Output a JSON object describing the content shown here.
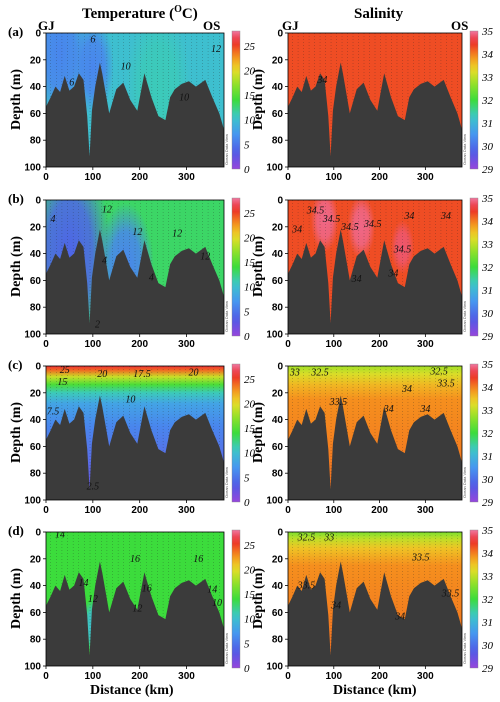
{
  "figure": {
    "left_title": "Temperature (",
    "left_title_sup": "O",
    "left_title_end": "C)",
    "right_title": "Salinity",
    "station_left": "GJ",
    "station_right": "OS",
    "depth_label": "Depth (m)",
    "distance_label": "Distance (km)",
    "watermark": "Ocean Data View",
    "panel_labels": [
      "(a)",
      "(b)",
      "(c)",
      "(d)"
    ]
  },
  "chart_data": [
    {
      "type": "heatmap",
      "panel": "(a)",
      "variable": "Temperature",
      "x_ticks": [
        0,
        100,
        200,
        300
      ],
      "y_ticks": [
        0,
        20,
        40,
        60,
        80,
        100
      ],
      "xlim": [
        0,
        380
      ],
      "ylim": [
        0,
        100
      ],
      "colorbar": {
        "ticks": [
          0,
          5,
          10,
          15,
          20,
          25
        ],
        "range": [
          0,
          28
        ]
      },
      "background_value": 10,
      "blobs": [
        {
          "x": 30,
          "d": 15,
          "r": 60,
          "v": 6
        },
        {
          "x": 100,
          "d": 25,
          "r": 45,
          "v": 6
        },
        {
          "x": 240,
          "d": 40,
          "r": 70,
          "v": 11
        }
      ],
      "contour_labels": [
        {
          "x": 100,
          "d": 5,
          "t": "6"
        },
        {
          "x": 55,
          "d": 37,
          "t": "6"
        },
        {
          "x": 170,
          "d": 25,
          "t": "10"
        },
        {
          "x": 295,
          "d": 48,
          "t": "10"
        },
        {
          "x": 363,
          "d": 12,
          "t": "12"
        }
      ]
    },
    {
      "type": "heatmap",
      "panel": "(a)",
      "variable": "Salinity",
      "x_ticks": [
        0,
        100,
        200,
        300
      ],
      "y_ticks": [
        0,
        20,
        40,
        60,
        80,
        100
      ],
      "xlim": [
        0,
        380
      ],
      "ylim": [
        0,
        100
      ],
      "colorbar": {
        "ticks": [
          29,
          30,
          31,
          32,
          33,
          34,
          35
        ],
        "range": [
          29,
          35
        ]
      },
      "background_value": 34.3,
      "blobs": [],
      "contour_labels": [
        {
          "x": 75,
          "d": 35,
          "t": "34"
        }
      ]
    },
    {
      "type": "heatmap",
      "panel": "(b)",
      "variable": "Temperature",
      "x_ticks": [
        0,
        100,
        200,
        300
      ],
      "y_ticks": [
        0,
        20,
        40,
        60,
        80,
        100
      ],
      "xlim": [
        0,
        380
      ],
      "ylim": [
        0,
        100
      ],
      "colorbar": {
        "ticks": [
          0,
          5,
          10,
          15,
          20,
          25
        ],
        "range": [
          0,
          28
        ]
      },
      "background_value": 13,
      "blobs": [
        {
          "x": 50,
          "d": 40,
          "r": 90,
          "v": 4
        },
        {
          "x": 170,
          "d": 50,
          "r": 60,
          "v": 6
        }
      ],
      "contour_labels": [
        {
          "x": 15,
          "d": 14,
          "t": "4"
        },
        {
          "x": 130,
          "d": 7,
          "t": "12"
        },
        {
          "x": 195,
          "d": 24,
          "t": "12"
        },
        {
          "x": 280,
          "d": 25,
          "t": "12"
        },
        {
          "x": 340,
          "d": 42,
          "t": "12"
        },
        {
          "x": 125,
          "d": 45,
          "t": "4"
        },
        {
          "x": 225,
          "d": 58,
          "t": "4"
        },
        {
          "x": 110,
          "d": 93,
          "t": "2"
        }
      ]
    },
    {
      "type": "heatmap",
      "panel": "(b)",
      "variable": "Salinity",
      "x_ticks": [
        0,
        100,
        200,
        300
      ],
      "y_ticks": [
        0,
        20,
        40,
        60,
        80,
        100
      ],
      "xlim": [
        0,
        380
      ],
      "ylim": [
        0,
        100
      ],
      "colorbar": {
        "ticks": [
          29,
          30,
          31,
          32,
          33,
          34,
          35
        ],
        "range": [
          29,
          35
        ]
      },
      "background_value": 34.3,
      "blobs": [
        {
          "x": 80,
          "d": 15,
          "r": 30,
          "v": 34.9
        },
        {
          "x": 160,
          "d": 20,
          "r": 30,
          "v": 34.9
        },
        {
          "x": 250,
          "d": 35,
          "r": 25,
          "v": 34.8
        }
      ],
      "contour_labels": [
        {
          "x": 20,
          "d": 22,
          "t": "34"
        },
        {
          "x": 60,
          "d": 8,
          "t": "34.5"
        },
        {
          "x": 95,
          "d": 14,
          "t": "34.5"
        },
        {
          "x": 135,
          "d": 20,
          "t": "34.5"
        },
        {
          "x": 185,
          "d": 18,
          "t": "34.5"
        },
        {
          "x": 265,
          "d": 12,
          "t": "34"
        },
        {
          "x": 345,
          "d": 12,
          "t": "34"
        },
        {
          "x": 250,
          "d": 37,
          "t": "34.5"
        },
        {
          "x": 150,
          "d": 59,
          "t": "34"
        },
        {
          "x": 230,
          "d": 55,
          "t": "34"
        }
      ]
    },
    {
      "type": "heatmap",
      "panel": "(c)",
      "variable": "Temperature",
      "x_ticks": [
        0,
        100,
        200,
        300
      ],
      "y_ticks": [
        0,
        20,
        40,
        60,
        80,
        100
      ],
      "xlim": [
        0,
        380
      ],
      "ylim": [
        0,
        100
      ],
      "colorbar": {
        "ticks": [
          0,
          5,
          10,
          15,
          20,
          25
        ],
        "range": [
          0,
          28
        ]
      },
      "background_value": 8,
      "layers": [
        {
          "d": 0,
          "v": 26
        },
        {
          "d": 3,
          "v": 24
        },
        {
          "d": 8,
          "v": 19
        },
        {
          "d": 14,
          "v": 14.5
        },
        {
          "d": 20,
          "v": 11
        },
        {
          "d": 28,
          "v": 8
        },
        {
          "d": 45,
          "v": 6
        },
        {
          "d": 100,
          "v": 2
        }
      ],
      "contour_labels": [
        {
          "x": 40,
          "d": 3,
          "t": "25"
        },
        {
          "x": 35,
          "d": 12,
          "t": "15"
        },
        {
          "x": 120,
          "d": 6,
          "t": "20"
        },
        {
          "x": 205,
          "d": 6,
          "t": "17.5"
        },
        {
          "x": 315,
          "d": 5,
          "t": "20"
        },
        {
          "x": 15,
          "d": 34,
          "t": "7.5"
        },
        {
          "x": 180,
          "d": 25,
          "t": "10"
        },
        {
          "x": 100,
          "d": 90,
          "t": "2.5"
        }
      ]
    },
    {
      "type": "heatmap",
      "panel": "(c)",
      "variable": "Salinity",
      "x_ticks": [
        0,
        100,
        200,
        300
      ],
      "y_ticks": [
        0,
        20,
        40,
        60,
        80,
        100
      ],
      "xlim": [
        0,
        380
      ],
      "ylim": [
        0,
        100
      ],
      "colorbar": {
        "ticks": [
          29,
          30,
          31,
          32,
          33,
          34,
          35
        ],
        "range": [
          29,
          35
        ]
      },
      "background_value": 33.7,
      "layers": [
        {
          "d": 0,
          "v": 32.8
        },
        {
          "d": 6,
          "v": 33.2
        },
        {
          "d": 14,
          "v": 33.6
        },
        {
          "d": 25,
          "v": 33.9
        },
        {
          "d": 100,
          "v": 34.1
        }
      ],
      "contour_labels": [
        {
          "x": 15,
          "d": 5,
          "t": "33"
        },
        {
          "x": 70,
          "d": 5,
          "t": "32.5"
        },
        {
          "x": 330,
          "d": 4,
          "t": "32.5"
        },
        {
          "x": 345,
          "d": 13,
          "t": "33.5"
        },
        {
          "x": 110,
          "d": 27,
          "t": "33.5"
        },
        {
          "x": 260,
          "d": 17,
          "t": "34"
        },
        {
          "x": 220,
          "d": 32,
          "t": "34"
        },
        {
          "x": 300,
          "d": 32,
          "t": "34"
        }
      ]
    },
    {
      "type": "heatmap",
      "panel": "(d)",
      "variable": "Temperature",
      "x_ticks": [
        0,
        100,
        200,
        300
      ],
      "y_ticks": [
        0,
        20,
        40,
        60,
        80,
        100
      ],
      "xlim": [
        0,
        380
      ],
      "ylim": [
        0,
        100
      ],
      "colorbar": {
        "ticks": [
          0,
          5,
          10,
          15,
          20,
          25
        ],
        "range": [
          0,
          28
        ]
      },
      "background_value": 14,
      "blobs": [
        {
          "x": 100,
          "d": 70,
          "r": 25,
          "v": 10
        }
      ],
      "contour_labels": [
        {
          "x": 30,
          "d": 2,
          "t": "14"
        },
        {
          "x": 80,
          "d": 38,
          "t": "14"
        },
        {
          "x": 100,
          "d": 50,
          "t": "12"
        },
        {
          "x": 190,
          "d": 20,
          "t": "16"
        },
        {
          "x": 215,
          "d": 42,
          "t": "16"
        },
        {
          "x": 325,
          "d": 20,
          "t": "16"
        },
        {
          "x": 355,
          "d": 43,
          "t": "14"
        },
        {
          "x": 195,
          "d": 57,
          "t": "12"
        },
        {
          "x": 365,
          "d": 53,
          "t": "10"
        }
      ]
    },
    {
      "type": "heatmap",
      "panel": "(d)",
      "variable": "Salinity",
      "x_ticks": [
        0,
        100,
        200,
        300
      ],
      "y_ticks": [
        0,
        20,
        40,
        60,
        80,
        100
      ],
      "xlim": [
        0,
        380
      ],
      "ylim": [
        0,
        100
      ],
      "colorbar": {
        "ticks": [
          29,
          30,
          31,
          32,
          33,
          34,
          35
        ],
        "range": [
          29,
          35
        ]
      },
      "background_value": 33.8,
      "layers": [
        {
          "d": 0,
          "v": 32.5
        },
        {
          "d": 5,
          "v": 33.0
        },
        {
          "d": 12,
          "v": 33.5
        },
        {
          "d": 25,
          "v": 33.9
        },
        {
          "d": 100,
          "v": 34.1
        }
      ],
      "contour_labels": [
        {
          "x": 40,
          "d": 4,
          "t": "32.5"
        },
        {
          "x": 90,
          "d": 4,
          "t": "33"
        },
        {
          "x": 40,
          "d": 40,
          "t": "33.5"
        },
        {
          "x": 105,
          "d": 55,
          "t": "34"
        },
        {
          "x": 290,
          "d": 19,
          "t": "33.5"
        },
        {
          "x": 355,
          "d": 46,
          "t": "33.5"
        },
        {
          "x": 245,
          "d": 63,
          "t": "34"
        }
      ]
    }
  ],
  "bathymetry_depths": [
    [
      0,
      55
    ],
    [
      10,
      48
    ],
    [
      20,
      40
    ],
    [
      30,
      44
    ],
    [
      40,
      32
    ],
    [
      50,
      43
    ],
    [
      60,
      40
    ],
    [
      70,
      30
    ],
    [
      80,
      35
    ],
    [
      88,
      62
    ],
    [
      93,
      92
    ],
    [
      98,
      58
    ],
    [
      105,
      40
    ],
    [
      115,
      22
    ],
    [
      120,
      30
    ],
    [
      135,
      60
    ],
    [
      150,
      42
    ],
    [
      165,
      37
    ],
    [
      180,
      50
    ],
    [
      195,
      58
    ],
    [
      210,
      30
    ],
    [
      225,
      48
    ],
    [
      240,
      62
    ],
    [
      255,
      65
    ],
    [
      265,
      48
    ],
    [
      275,
      42
    ],
    [
      290,
      38
    ],
    [
      305,
      36
    ],
    [
      320,
      40
    ],
    [
      340,
      35
    ],
    [
      355,
      48
    ],
    [
      370,
      60
    ],
    [
      380,
      72
    ]
  ],
  "colors": {
    "seabed": "#3b3b3b"
  }
}
